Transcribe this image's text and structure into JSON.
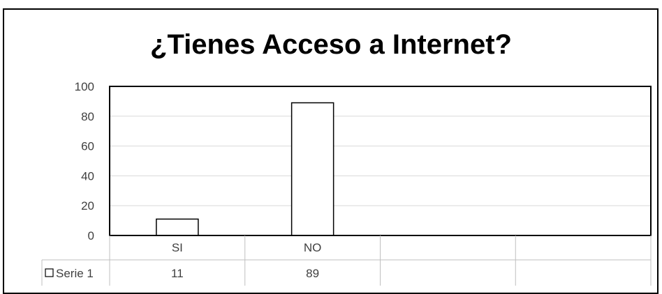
{
  "chart_data": {
    "type": "bar",
    "title": "¿Tienes Acceso a Internet?",
    "categories": [
      "SI",
      "NO",
      "",
      ""
    ],
    "series": [
      {
        "name": "Serie 1",
        "values": [
          11,
          89,
          null,
          null
        ]
      }
    ],
    "ylim": [
      0,
      100
    ],
    "yticks": [
      0,
      20,
      40,
      60,
      80,
      100
    ],
    "grid": true,
    "legend": "data-table",
    "data_table": true,
    "colors": {
      "bar_fill": "#ffffff",
      "bar_stroke": "#000000",
      "grid": "#d9d9d9",
      "table": "#bfbfbf"
    }
  }
}
